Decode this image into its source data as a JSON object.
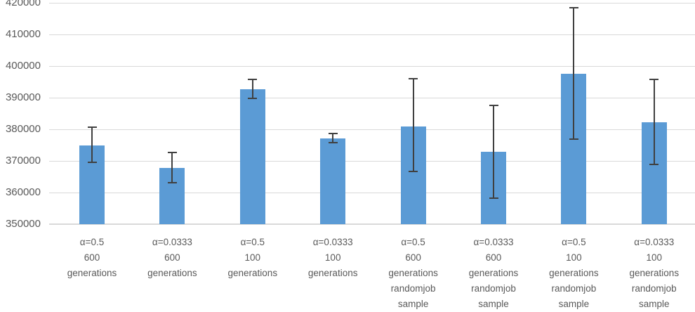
{
  "chart_data": {
    "type": "bar",
    "title": "",
    "xlabel": "",
    "ylabel": "",
    "categories": [
      [
        "α=0.5",
        "600",
        "generations"
      ],
      [
        "α=0.0333",
        "600",
        "generations"
      ],
      [
        "α=0.5",
        "100",
        "generations"
      ],
      [
        "α=0.0333",
        "100",
        "generations"
      ],
      [
        "α=0.5",
        "600",
        "generations",
        "randomjob",
        "sample"
      ],
      [
        "α=0.0333",
        "600",
        "generations",
        "randomjob",
        "sample"
      ],
      [
        "α=0.5",
        "100",
        "generations",
        "randomjob",
        "sample"
      ],
      [
        "α=0.0333",
        "100",
        "generations",
        "randomjob",
        "sample"
      ]
    ],
    "values": [
      375000,
      367800,
      392700,
      377200,
      381000,
      372900,
      397600,
      382200
    ],
    "error_bars": {
      "top": [
        380700,
        372600,
        395700,
        378600,
        395900,
        387500,
        418500,
        395700
      ],
      "bottom": [
        369600,
        363100,
        389700,
        375800,
        366700,
        358300,
        376800,
        368800
      ]
    },
    "ylim": [
      350000,
      420000
    ],
    "ytick_interval": 10000,
    "ytick_labels": [
      "350000",
      "360000",
      "370000",
      "380000",
      "390000",
      "400000",
      "410000",
      "420000"
    ],
    "grid": true,
    "legend_position": "none",
    "colors": {
      "bar_fill": "#5b9bd5",
      "error_bar": "#404040",
      "gridline": "#d9d9d9",
      "axis_line": "#d9d9d9",
      "tick_text": "#595959",
      "background": "#ffffff"
    }
  }
}
